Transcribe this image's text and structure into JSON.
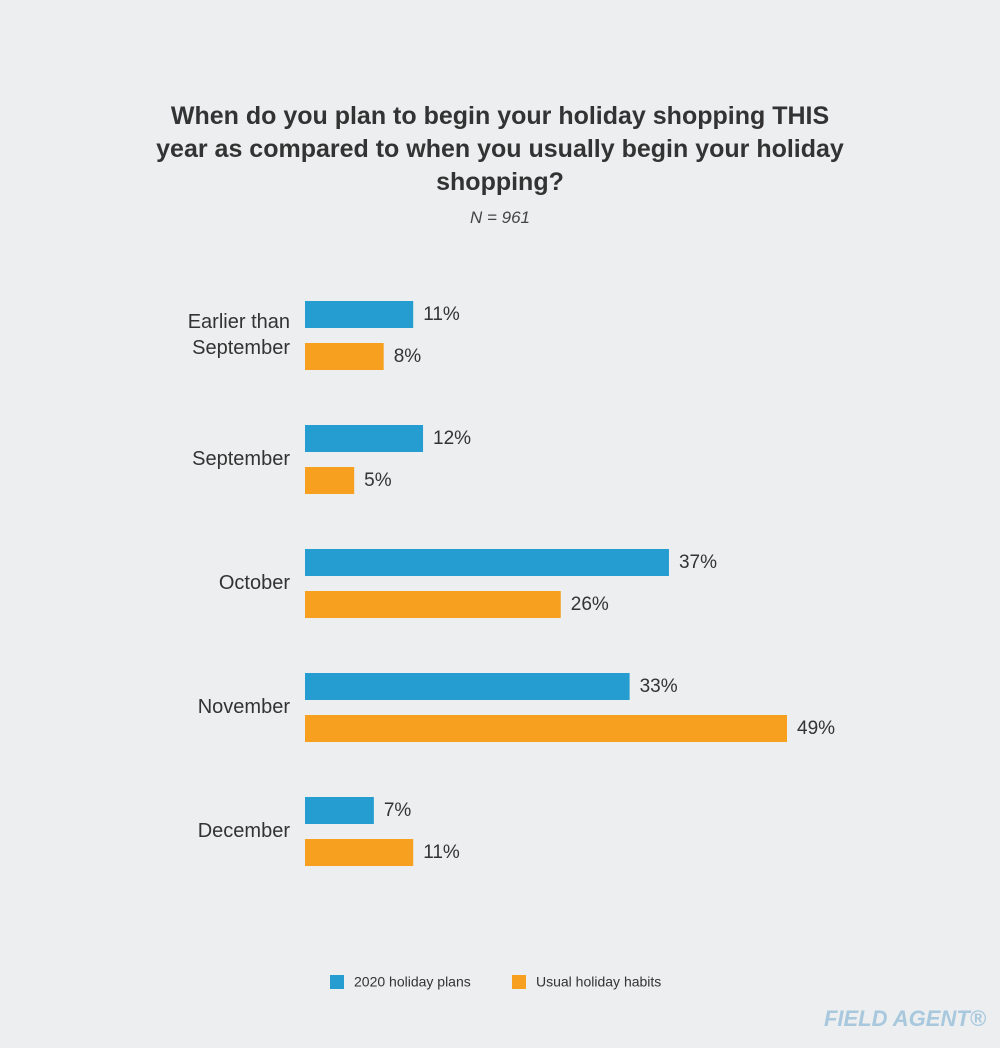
{
  "chart_data": {
    "type": "bar",
    "title": "When do you plan to begin your holiday shopping THIS year as compared to when you usually begin your holiday shopping?",
    "subtitle": "N = 961",
    "categories": [
      "Earlier than September",
      "September",
      "October",
      "November",
      "December"
    ],
    "orientation": "horizontal",
    "series": [
      {
        "name": "2020 holiday plans",
        "color": "#259dd0",
        "values": [
          11,
          12,
          37,
          33,
          7
        ],
        "value_labels": [
          "11%",
          "12%",
          "37%",
          "33%",
          "7%"
        ]
      },
      {
        "name": "Usual holiday habits",
        "color": "#f7a020",
        "values": [
          8,
          5,
          26,
          49,
          11
        ],
        "value_labels": [
          "8%",
          "5%",
          "26%",
          "49%",
          "11%"
        ]
      }
    ],
    "legend": "bottom",
    "brand": "FIELD AGENT®"
  }
}
